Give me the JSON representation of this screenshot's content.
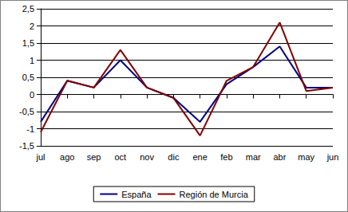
{
  "chart_data": {
    "type": "line",
    "categories": [
      "jul",
      "ago",
      "sep",
      "oct",
      "nov",
      "dic",
      "ene",
      "feb",
      "mar",
      "abr",
      "may",
      "jun"
    ],
    "series": [
      {
        "name": "España",
        "color": "#000080",
        "values": [
          -0.8,
          0.4,
          0.2,
          1.0,
          0.2,
          -0.1,
          -0.8,
          0.3,
          0.8,
          1.4,
          0.2,
          0.2
        ]
      },
      {
        "name": "Región de Murcia",
        "color": "#800000",
        "values": [
          -1.1,
          0.4,
          0.2,
          1.3,
          0.2,
          -0.1,
          -1.2,
          0.4,
          0.8,
          2.1,
          0.1,
          0.2
        ]
      }
    ],
    "ylim": [
      -1.5,
      2.5
    ],
    "yticks": [
      {
        "value": -1.5,
        "label": "-1,5"
      },
      -1,
      {
        "value": -0.5,
        "label": "-0,5"
      },
      0,
      {
        "value": 0.5,
        "label": "0,5"
      },
      1,
      {
        "value": 1.5,
        "label": "1,5"
      },
      2,
      {
        "value": 2.5,
        "label": "2,5"
      }
    ],
    "grid": true,
    "legend": "bottom",
    "marker": "none",
    "line_style": "solid"
  }
}
